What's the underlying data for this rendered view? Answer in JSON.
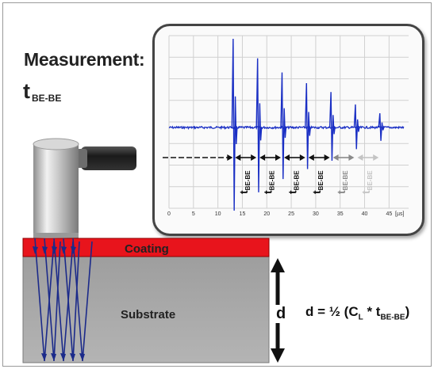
{
  "title": "Measurement:",
  "variable": {
    "symbol": "t",
    "subscript": "BE-BE"
  },
  "layers": {
    "coating": "Coating",
    "substrate": "Substrate"
  },
  "thickness_label": "d",
  "formula": {
    "prefix": "d = ½ (C",
    "c_sub": "L",
    "middle": " * t",
    "t_sub": "BE-BE",
    "suffix": ")"
  },
  "oscilloscope": {
    "unit_label": "[µs]",
    "x_ticks": [
      "0",
      "5",
      "10",
      "15",
      "20",
      "25",
      "30",
      "35",
      "40",
      "45"
    ],
    "echo_times": [
      13.2,
      18.2,
      23.2,
      28.2,
      33.2,
      38.2,
      43.2
    ],
    "echo_amplitudes": [
      1.0,
      0.78,
      0.62,
      0.5,
      0.4,
      0.26,
      0.16
    ],
    "interval_labels": [
      "t",
      "t",
      "t",
      "t",
      "t",
      "t"
    ],
    "interval_sub": "BE-BE",
    "colors": {
      "signal": "#1a2fc4",
      "grid": "#d0d0d0",
      "arrow": "#111111"
    }
  },
  "colors": {
    "coating": "#e8141c",
    "substrate": "#a6a6a6",
    "waves": "#1b2a8a"
  }
}
